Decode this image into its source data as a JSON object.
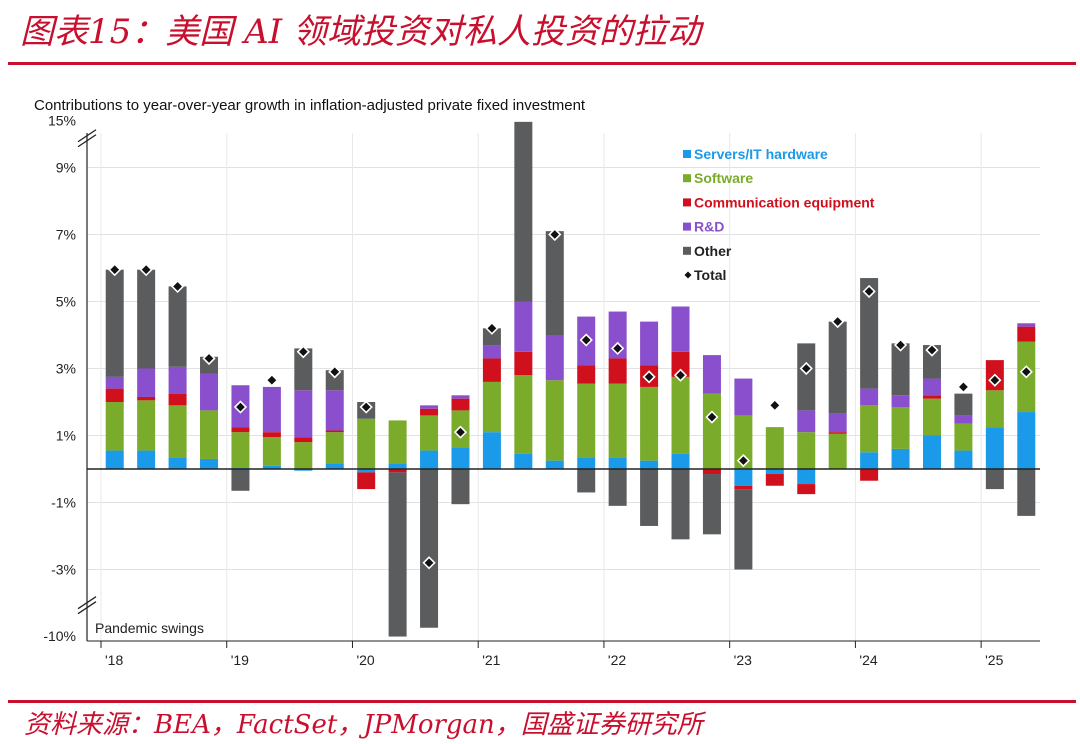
{
  "page": {
    "heading": "图表15：美国 AI 领域投资对私人投资的拉动",
    "source": "资料来源：BEA，FactSet，JPMorgan，国盛证券研究所"
  },
  "chart_data": {
    "type": "bar",
    "stacked": true,
    "title": "Contributions to year-over-year growth in inflation-adjusted private fixed investment",
    "annotation": "Pandemic swings",
    "ylim": [
      -10,
      15
    ],
    "y_ticks": [
      "15%",
      "9%",
      "7%",
      "5%",
      "3%",
      "1%",
      "-1%",
      "-3%",
      "-10%"
    ],
    "axis_break": "y-axis compressed above 10% and below -4%",
    "x_labels": [
      "'18",
      "'19",
      "'20",
      "'21",
      "'22",
      "'23",
      "'24",
      "'25"
    ],
    "categories": [
      "2018Q1",
      "2018Q2",
      "2018Q3",
      "2018Q4",
      "2019Q1",
      "2019Q2",
      "2019Q3",
      "2019Q4",
      "2020Q1",
      "2020Q2",
      "2020Q3",
      "2020Q4",
      "2021Q1",
      "2021Q2",
      "2021Q3",
      "2021Q4",
      "2022Q1",
      "2022Q2",
      "2022Q3",
      "2022Q4",
      "2023Q1",
      "2023Q2",
      "2023Q3",
      "2023Q4",
      "2024Q1",
      "2024Q2",
      "2024Q3",
      "2024Q4",
      "2025Q1",
      "2025Q2"
    ],
    "grid": true,
    "legend_position": "top-right",
    "series": [
      {
        "name": "Servers/IT hardware",
        "color": "#1a9ae8",
        "values": [
          0.55,
          0.55,
          0.35,
          0.3,
          0.05,
          0.1,
          -0.05,
          0.15,
          -0.1,
          0.15,
          0.55,
          0.65,
          1.1,
          0.45,
          0.25,
          0.35,
          0.35,
          0.25,
          0.45,
          0.0,
          -0.5,
          -0.15,
          -0.45,
          0.0,
          0.5,
          0.6,
          1.0,
          0.55,
          1.25,
          1.7
        ]
      },
      {
        "name": "Software",
        "color": "#7aab2a",
        "values": [
          1.45,
          1.5,
          1.55,
          1.45,
          1.05,
          0.85,
          0.8,
          0.95,
          1.5,
          1.3,
          1.05,
          1.1,
          1.5,
          2.35,
          2.4,
          2.2,
          2.2,
          2.2,
          2.3,
          2.25,
          1.6,
          1.25,
          1.1,
          1.05,
          1.4,
          1.25,
          1.1,
          0.8,
          1.1,
          2.1
        ]
      },
      {
        "name": "Communication equipment",
        "color": "#d0101c",
        "values": [
          0.4,
          0.1,
          0.35,
          0.0,
          0.15,
          0.15,
          0.15,
          0.05,
          -0.5,
          -0.1,
          0.2,
          0.35,
          0.7,
          0.7,
          0.0,
          0.55,
          0.75,
          0.65,
          0.75,
          -0.15,
          -0.1,
          -0.35,
          -0.3,
          0.05,
          -0.35,
          0.0,
          0.1,
          0.0,
          0.9,
          0.45
        ]
      },
      {
        "name": "R&D",
        "color": "#8a4fcc",
        "values": [
          0.35,
          0.85,
          0.8,
          1.1,
          1.25,
          1.35,
          1.4,
          1.2,
          0.0,
          0.0,
          0.1,
          0.1,
          0.4,
          1.5,
          1.35,
          1.45,
          1.4,
          1.3,
          1.35,
          1.15,
          1.1,
          0.0,
          0.65,
          0.55,
          0.5,
          0.35,
          0.5,
          0.25,
          0.0,
          0.1
        ]
      },
      {
        "name": "Other",
        "color": "#5a5c5e",
        "values": [
          3.2,
          2.95,
          2.4,
          0.5,
          -0.65,
          0.0,
          1.25,
          0.6,
          0.5,
          -10.0,
          -8.5,
          -1.05,
          0.5,
          9.5,
          3.1,
          -0.7,
          -1.1,
          -1.7,
          -2.1,
          -1.8,
          -2.4,
          0.0,
          2.0,
          2.75,
          3.3,
          1.55,
          1.0,
          0.65,
          -0.6,
          -1.4
        ]
      },
      {
        "name": "Total",
        "color": "#111111",
        "marker": "diamond",
        "values": [
          5.95,
          5.95,
          5.45,
          3.3,
          1.85,
          2.65,
          3.5,
          2.9,
          1.85,
          null,
          -2.8,
          1.1,
          4.2,
          null,
          7.0,
          3.85,
          3.6,
          2.75,
          2.8,
          1.55,
          0.25,
          1.9,
          3.0,
          4.4,
          5.3,
          3.7,
          3.55,
          2.45,
          2.65,
          2.9
        ]
      }
    ]
  }
}
